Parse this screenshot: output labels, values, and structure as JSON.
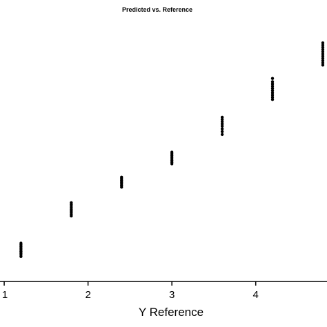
{
  "chart_data": {
    "type": "scatter",
    "title": "Predicted vs. Reference",
    "xlabel": "Y Reference",
    "ylabel": "",
    "xlim": [
      0.95,
      4.85
    ],
    "ylim": [
      0.6,
      5.3
    ],
    "x_ticks": [
      1,
      2,
      3,
      4
    ],
    "x_tick_labels": [
      "1",
      "2",
      "3",
      "4"
    ],
    "grid": false,
    "legend": "none",
    "marker_color": "#000000",
    "series": [
      {
        "points": [
          {
            "x": 1.2,
            "y": 1.05
          },
          {
            "x": 1.2,
            "y": 1.08
          },
          {
            "x": 1.2,
            "y": 1.11
          },
          {
            "x": 1.2,
            "y": 1.14
          },
          {
            "x": 1.2,
            "y": 1.17
          },
          {
            "x": 1.2,
            "y": 1.2
          },
          {
            "x": 1.2,
            "y": 1.23
          },
          {
            "x": 1.2,
            "y": 1.26
          },
          {
            "x": 1.2,
            "y": 1.29
          },
          {
            "x": 1.8,
            "y": 1.78
          },
          {
            "x": 1.8,
            "y": 1.81
          },
          {
            "x": 1.8,
            "y": 1.84
          },
          {
            "x": 1.8,
            "y": 1.87
          },
          {
            "x": 1.8,
            "y": 1.9
          },
          {
            "x": 1.8,
            "y": 1.93
          },
          {
            "x": 1.8,
            "y": 1.96
          },
          {
            "x": 1.8,
            "y": 1.99
          },
          {
            "x": 1.8,
            "y": 2.02
          },
          {
            "x": 2.4,
            "y": 2.3
          },
          {
            "x": 2.4,
            "y": 2.33
          },
          {
            "x": 2.4,
            "y": 2.36
          },
          {
            "x": 2.4,
            "y": 2.39
          },
          {
            "x": 2.4,
            "y": 2.42
          },
          {
            "x": 2.4,
            "y": 2.45
          },
          {
            "x": 2.4,
            "y": 2.48
          },
          {
            "x": 3.0,
            "y": 2.72
          },
          {
            "x": 3.0,
            "y": 2.75
          },
          {
            "x": 3.0,
            "y": 2.78
          },
          {
            "x": 3.0,
            "y": 2.81
          },
          {
            "x": 3.0,
            "y": 2.84
          },
          {
            "x": 3.0,
            "y": 2.87
          },
          {
            "x": 3.0,
            "y": 2.9
          },
          {
            "x": 3.0,
            "y": 2.93
          },
          {
            "x": 3.6,
            "y": 3.25
          },
          {
            "x": 3.6,
            "y": 3.3
          },
          {
            "x": 3.6,
            "y": 3.35
          },
          {
            "x": 3.6,
            "y": 3.4
          },
          {
            "x": 3.6,
            "y": 3.44
          },
          {
            "x": 3.6,
            "y": 3.48
          },
          {
            "x": 3.6,
            "y": 3.52
          },
          {
            "x": 3.6,
            "y": 3.56
          },
          {
            "x": 4.2,
            "y": 3.88
          },
          {
            "x": 4.2,
            "y": 3.92
          },
          {
            "x": 4.2,
            "y": 3.96
          },
          {
            "x": 4.2,
            "y": 4.0
          },
          {
            "x": 4.2,
            "y": 4.04
          },
          {
            "x": 4.2,
            "y": 4.08
          },
          {
            "x": 4.2,
            "y": 4.12
          },
          {
            "x": 4.2,
            "y": 4.16
          },
          {
            "x": 4.2,
            "y": 4.2
          },
          {
            "x": 4.2,
            "y": 4.26
          },
          {
            "x": 4.8,
            "y": 4.5
          },
          {
            "x": 4.8,
            "y": 4.54
          },
          {
            "x": 4.8,
            "y": 4.58
          },
          {
            "x": 4.8,
            "y": 4.62
          },
          {
            "x": 4.8,
            "y": 4.66
          },
          {
            "x": 4.8,
            "y": 4.7
          },
          {
            "x": 4.8,
            "y": 4.74
          },
          {
            "x": 4.8,
            "y": 4.78
          },
          {
            "x": 4.8,
            "y": 4.82
          },
          {
            "x": 4.8,
            "y": 4.86
          },
          {
            "x": 4.8,
            "y": 4.9
          }
        ]
      }
    ]
  }
}
